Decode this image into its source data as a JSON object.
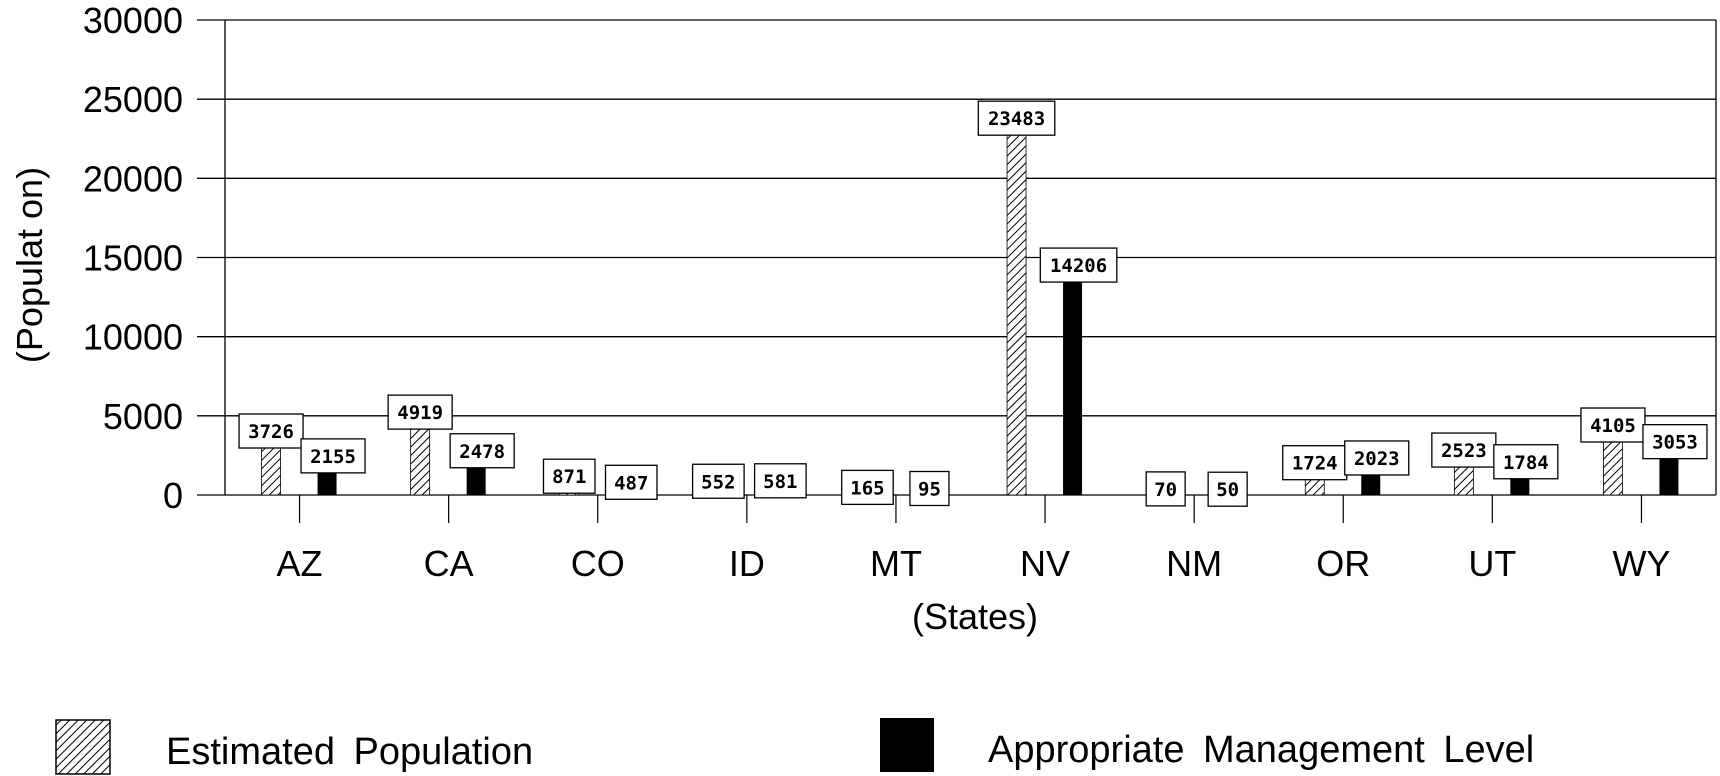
{
  "chart_data": {
    "type": "bar",
    "title": "",
    "xlabel": "(States)",
    "ylabel": "(Populat on)",
    "ylim": [
      0,
      30000
    ],
    "yticks": [
      0,
      5000,
      10000,
      15000,
      20000,
      25000,
      30000
    ],
    "grid": true,
    "legend_position": "bottom",
    "categories": [
      "AZ",
      "CA",
      "CO",
      "ID",
      "MT",
      "NV",
      "NM",
      "OR",
      "UT",
      "WY"
    ],
    "series": [
      {
        "name": "Estimated Population",
        "values": [
          3726,
          4919,
          871,
          552,
          165,
          23483,
          70,
          1724,
          2523,
          4105
        ],
        "labels": [
          "3726",
          "4919",
          "871",
          "552",
          "165",
          "23483",
          "70",
          "1724",
          "2523",
          "4105"
        ],
        "pattern": "hatched"
      },
      {
        "name": "Appropriate Management Level",
        "values": [
          2155,
          2478,
          487,
          581,
          95,
          14206,
          50,
          2023,
          1784,
          3053
        ],
        "labels": [
          "2155",
          "2478",
          "487",
          "581",
          "95",
          "14206",
          "50",
          "2023",
          "1784",
          "3053"
        ],
        "color": "#000000"
      }
    ]
  }
}
